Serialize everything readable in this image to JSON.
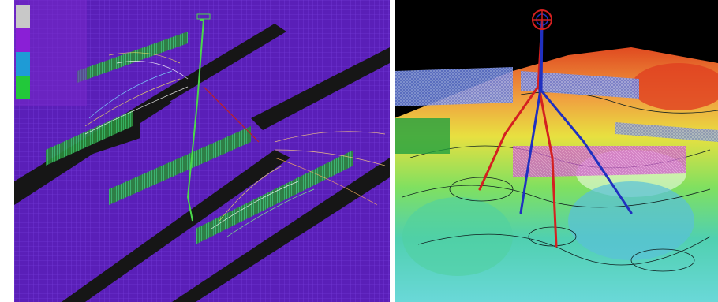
{
  "left_view": {
    "legend": {
      "title": "",
      "entries": [
        {
          "label": "",
          "color": "#c8c8c8"
        },
        {
          "label": "",
          "color": "#8a1fd6"
        },
        {
          "label": "",
          "color": "#1e9bd6"
        },
        {
          "label": "",
          "color": "#22c83a"
        }
      ]
    },
    "colors": {
      "grid": "#5a1fb8",
      "gridline": "#7a40e0",
      "trench": "#1a1a1a",
      "well": "#4ad84a"
    },
    "well_label": ""
  },
  "right_view": {
    "colors": {
      "background": "#000000",
      "high": "#e04020",
      "mid": "#e8d840",
      "low": "#4ac8c8",
      "well_red": "#d42020",
      "well_blue": "#2030c0"
    },
    "wellhead_icon": "wellhead-target-icon"
  }
}
